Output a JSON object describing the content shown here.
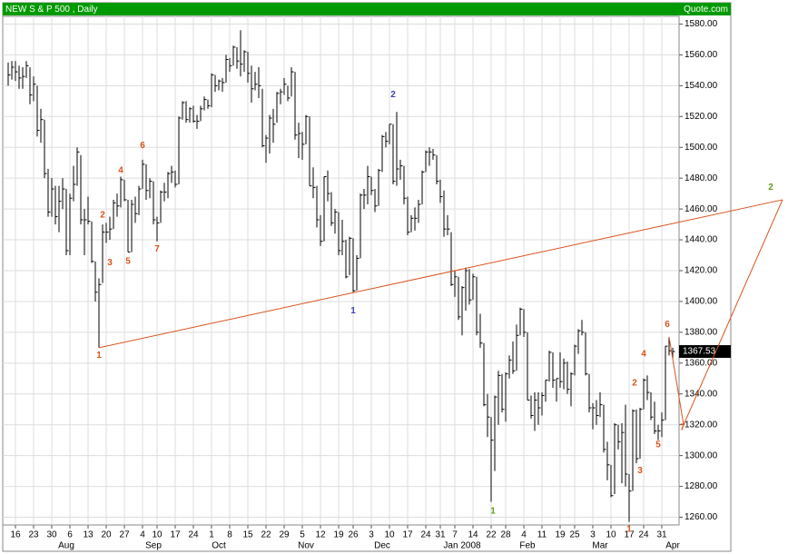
{
  "chart_data": {
    "type": "ohlc",
    "title": "NEW S & P 500  , Daily",
    "source": "Quote.com",
    "ylim": [
      1255,
      1585
    ],
    "yticks": [
      {
        "value": 1260,
        "label": "1260.00"
      },
      {
        "value": 1280,
        "label": "1280.00"
      },
      {
        "value": 1300,
        "label": "1300.00"
      },
      {
        "value": 1320,
        "label": "1320.00"
      },
      {
        "value": 1340,
        "label": "1340.00"
      },
      {
        "value": 1360,
        "label": "1360.00"
      },
      {
        "value": 1380,
        "label": "1380.00"
      },
      {
        "value": 1400,
        "label": "1400.00"
      },
      {
        "value": 1420,
        "label": "1420.00"
      },
      {
        "value": 1440,
        "label": "1440.00"
      },
      {
        "value": 1460,
        "label": "1460.00"
      },
      {
        "value": 1480,
        "label": "1480.00"
      },
      {
        "value": 1500,
        "label": "1500.00"
      },
      {
        "value": 1520,
        "label": "1520.00"
      },
      {
        "value": 1540,
        "label": "1540.00"
      },
      {
        "value": 1560,
        "label": "1560.00"
      },
      {
        "value": 1580,
        "label": "1580.00"
      }
    ],
    "grid": true,
    "bar_color": "#000000",
    "categories": [
      null,
      null,
      "16",
      null,
      null,
      null,
      null,
      "23",
      null,
      null,
      null,
      null,
      "30",
      null,
      null,
      null,
      null,
      "6",
      null,
      null,
      null,
      null,
      "13",
      null,
      null,
      null,
      null,
      "20",
      null,
      null,
      null,
      null,
      "27",
      null,
      null,
      null,
      null,
      "4",
      null,
      null,
      null,
      "10",
      null,
      null,
      null,
      null,
      "17",
      null,
      null,
      null,
      null,
      "24",
      null,
      null,
      null,
      null,
      "1",
      null,
      null,
      null,
      null,
      "8",
      null,
      null,
      null,
      null,
      "15",
      null,
      null,
      null,
      null,
      "22",
      null,
      null,
      null,
      null,
      "29",
      null,
      null,
      null,
      null,
      "5",
      null,
      null,
      null,
      null,
      "12",
      null,
      null,
      null,
      null,
      "19",
      null,
      null,
      null,
      "26",
      null,
      null,
      null,
      null,
      "3",
      null,
      null,
      null,
      null,
      "10",
      null,
      null,
      null,
      null,
      "17",
      null,
      null,
      null,
      null,
      "24",
      null,
      null,
      null,
      "31",
      null,
      null,
      null,
      "7",
      null,
      null,
      null,
      null,
      "14",
      null,
      null,
      null,
      null,
      "22",
      null,
      null,
      null,
      "28",
      null,
      null,
      null,
      null,
      "4",
      null,
      null,
      null,
      null,
      "11",
      null,
      null,
      null,
      null,
      "19",
      null,
      null,
      null,
      "25",
      null,
      null,
      null,
      null,
      "3",
      null,
      null,
      null,
      null,
      "10",
      null,
      null,
      null,
      null,
      "17",
      null,
      null,
      null,
      "24",
      null,
      null,
      null,
      null,
      "31",
      null,
      null,
      null
    ],
    "month_categories": [
      null,
      null,
      null,
      null,
      null,
      null,
      null,
      null,
      null,
      null,
      null,
      null,
      null,
      null,
      null,
      null,
      "Aug",
      null,
      null,
      null,
      null,
      null,
      null,
      null,
      null,
      null,
      null,
      null,
      null,
      null,
      null,
      null,
      null,
      null,
      null,
      null,
      null,
      null,
      null,
      null,
      "Sep",
      null,
      null,
      null,
      null,
      null,
      null,
      null,
      null,
      null,
      null,
      null,
      null,
      null,
      null,
      null,
      null,
      null,
      "Oct",
      null,
      null,
      null,
      null,
      null,
      null,
      null,
      null,
      null,
      null,
      null,
      null,
      null,
      null,
      null,
      null,
      null,
      null,
      null,
      null,
      null,
      null,
      null,
      "Nov",
      null,
      null,
      null,
      null,
      null,
      null,
      null,
      null,
      null,
      null,
      null,
      null,
      null,
      null,
      null,
      null,
      null,
      null,
      null,
      null,
      "Dec",
      null,
      null,
      null,
      null,
      null,
      null,
      null,
      null,
      null,
      null,
      null,
      null,
      null,
      null,
      null,
      null,
      null,
      null,
      null,
      null,
      null,
      "Jan 2008",
      null,
      null,
      null,
      null,
      null,
      null,
      null,
      null,
      null,
      null,
      null,
      null,
      null,
      null,
      null,
      null,
      null,
      "Feb",
      null,
      null,
      null,
      null,
      null,
      null,
      null,
      null,
      null,
      null,
      null,
      null,
      null,
      null,
      null,
      null,
      null,
      null,
      null,
      "Mar",
      null,
      null,
      null,
      null,
      null,
      null,
      null,
      null,
      null,
      null,
      null,
      null,
      null,
      null,
      null,
      null,
      null,
      null,
      null,
      "Apr"
    ],
    "high": [
      1555,
      1556,
      1556,
      1553,
      1552,
      1556,
      1552,
      1546,
      1540,
      1525,
      1518,
      1486,
      1480,
      1475,
      1475,
      1480,
      1473,
      1470,
      1488,
      1500,
      1495,
      1460,
      1468,
      1452,
      1426,
      1415,
      1450,
      1451,
      1455,
      1466,
      1470,
      1481,
      1479,
      1466,
      1466,
      1468,
      1475,
      1492,
      1489,
      1480,
      1478,
      1455,
      1472,
      1477,
      1484,
      1488,
      1485,
      1520,
      1530,
      1530,
      1526,
      1527,
      1521,
      1527,
      1533,
      1531,
      1548,
      1547,
      1544,
      1545,
      1560,
      1558,
      1566,
      1565,
      1576,
      1563,
      1562,
      1553,
      1549,
      1552,
      1538,
      1508,
      1521,
      1525,
      1536,
      1538,
      1545,
      1540,
      1552,
      1549,
      1516,
      1510,
      1521,
      1520,
      1487,
      1475,
      1456,
      1481,
      1485,
      1471,
      1460,
      1458,
      1453,
      1440,
      1442,
      1441,
      1430,
      1470,
      1473,
      1488,
      1481,
      1473,
      1486,
      1508,
      1510,
      1515,
      1515,
      1523,
      1492,
      1488,
      1468,
      1456,
      1461,
      1466,
      1485,
      1498,
      1500,
      1499,
      1495,
      1479,
      1472,
      1456,
      1445,
      1420,
      1416,
      1410,
      1422,
      1421,
      1418,
      1416,
      1392,
      1373,
      1340,
      1325,
      1339,
      1355,
      1353,
      1354,
      1365,
      1374,
      1385,
      1396,
      1395,
      1380,
      1339,
      1341,
      1341,
      1341,
      1349,
      1368,
      1367,
      1350,
      1367,
      1363,
      1361,
      1354,
      1372,
      1382,
      1388,
      1380,
      1353,
      1334,
      1336,
      1341,
      1333,
      1309,
      1294,
      1321,
      1320,
      1321,
      1333,
      1288,
      1330,
      1330,
      1331,
      1350,
      1352,
      1341,
      1335,
      1320,
      1328,
      1371,
      1377,
      1370
    ],
    "low": [
      1540,
      1544,
      1543,
      1538,
      1538,
      1545,
      1528,
      1530,
      1507,
      1503,
      1480,
      1455,
      1455,
      1450,
      1445,
      1460,
      1430,
      1430,
      1465,
      1475,
      1450,
      1430,
      1450,
      1425,
      1400,
      1370,
      1412,
      1438,
      1440,
      1447,
      1455,
      1461,
      1465,
      1432,
      1432,
      1451,
      1456,
      1473,
      1466,
      1467,
      1450,
      1439,
      1451,
      1465,
      1467,
      1477,
      1474,
      1476,
      1518,
      1516,
      1516,
      1516,
      1512,
      1517,
      1524,
      1525,
      1526,
      1536,
      1537,
      1536,
      1542,
      1549,
      1553,
      1551,
      1546,
      1549,
      1542,
      1529,
      1537,
      1532,
      1500,
      1490,
      1496,
      1503,
      1516,
      1528,
      1534,
      1530,
      1533,
      1505,
      1493,
      1492,
      1502,
      1475,
      1467,
      1448,
      1436,
      1439,
      1465,
      1449,
      1444,
      1430,
      1430,
      1415,
      1417,
      1406,
      1407,
      1428,
      1460,
      1463,
      1469,
      1458,
      1462,
      1484,
      1500,
      1502,
      1476,
      1475,
      1479,
      1463,
      1443,
      1445,
      1446,
      1451,
      1463,
      1484,
      1488,
      1492,
      1476,
      1464,
      1442,
      1443,
      1410,
      1403,
      1388,
      1378,
      1394,
      1398,
      1401,
      1378,
      1370,
      1332,
      1312,
      1270,
      1290,
      1320,
      1328,
      1322,
      1350,
      1353,
      1355,
      1378,
      1377,
      1336,
      1324,
      1316,
      1320,
      1326,
      1335,
      1348,
      1344,
      1335,
      1344,
      1343,
      1340,
      1332,
      1352,
      1366,
      1378,
      1352,
      1328,
      1317,
      1320,
      1325,
      1302,
      1284,
      1273,
      1275,
      1304,
      1282,
      1280,
      1257,
      1277,
      1295,
      1298,
      1330,
      1336,
      1323,
      1314,
      1310,
      1312,
      1323,
      1365,
      1363
    ],
    "close": [
      1547,
      1552,
      1549,
      1545,
      1546,
      1553,
      1534,
      1541,
      1511,
      1518,
      1483,
      1458,
      1473,
      1455,
      1465,
      1473,
      1433,
      1467,
      1476,
      1497,
      1453,
      1453,
      1452,
      1426,
      1406,
      1411,
      1445,
      1445,
      1447,
      1464,
      1462,
      1479,
      1466,
      1432,
      1463,
      1457,
      1473,
      1489,
      1472,
      1478,
      1453,
      1451,
      1471,
      1471,
      1483,
      1484,
      1476,
      1519,
      1529,
      1518,
      1525,
      1517,
      1517,
      1525,
      1531,
      1527,
      1547,
      1540,
      1543,
      1542,
      1557,
      1553,
      1565,
      1556,
      1554,
      1562,
      1548,
      1538,
      1541,
      1540,
      1501,
      1506,
      1519,
      1515,
      1535,
      1536,
      1541,
      1532,
      1549,
      1508,
      1509,
      1502,
      1520,
      1475,
      1474,
      1453,
      1439,
      1481,
      1470,
      1451,
      1458,
      1433,
      1439,
      1416,
      1441,
      1407,
      1428,
      1469,
      1469,
      1481,
      1472,
      1462,
      1485,
      1507,
      1504,
      1515,
      1478,
      1486,
      1488,
      1467,
      1445,
      1454,
      1454,
      1463,
      1484,
      1497,
      1497,
      1495,
      1478,
      1468,
      1447,
      1447,
      1411,
      1416,
      1390,
      1409,
      1420,
      1401,
      1416,
      1380,
      1373,
      1333,
      1325,
      1310,
      1338,
      1352,
      1330,
      1353,
      1362,
      1355,
      1378,
      1395,
      1380,
      1336,
      1326,
      1336,
      1331,
      1339,
      1349,
      1367,
      1349,
      1350,
      1348,
      1360,
      1343,
      1353,
      1371,
      1381,
      1380,
      1353,
      1331,
      1331,
      1326,
      1333,
      1304,
      1294,
      1274,
      1320,
      1309,
      1315,
      1288,
      1277,
      1329,
      1298,
      1330,
      1349,
      1341,
      1325,
      1316,
      1316,
      1323,
      1371,
      1368,
      1367.53
    ],
    "annotations": [
      {
        "text": "1",
        "color": "#d9531e"
      },
      {
        "text": "2",
        "color": "#d9531e"
      },
      {
        "text": "3",
        "color": "#d9531e"
      },
      {
        "text": "4",
        "color": "#d9531e"
      },
      {
        "text": "5",
        "color": "#d9531e"
      },
      {
        "text": "6",
        "color": "#d9531e"
      },
      {
        "text": "7",
        "color": "#d9531e"
      },
      {
        "text": "1",
        "color": "#3b40b0"
      },
      {
        "text": "2",
        "color": "#3b40b0"
      },
      {
        "text": "1",
        "color": "#5b9c1c"
      },
      {
        "text": "1",
        "color": "#d9531e"
      },
      {
        "text": "2",
        "color": "#d9531e"
      },
      {
        "text": "3",
        "color": "#d9531e"
      },
      {
        "text": "4",
        "color": "#d9531e"
      },
      {
        "text": "5",
        "color": "#d9531e"
      },
      {
        "text": "6",
        "color": "#d9531e"
      },
      {
        "text": "7",
        "color": "#d9531e"
      },
      {
        "text": "2",
        "color": "#5b9c1c"
      }
    ]
  }
}
